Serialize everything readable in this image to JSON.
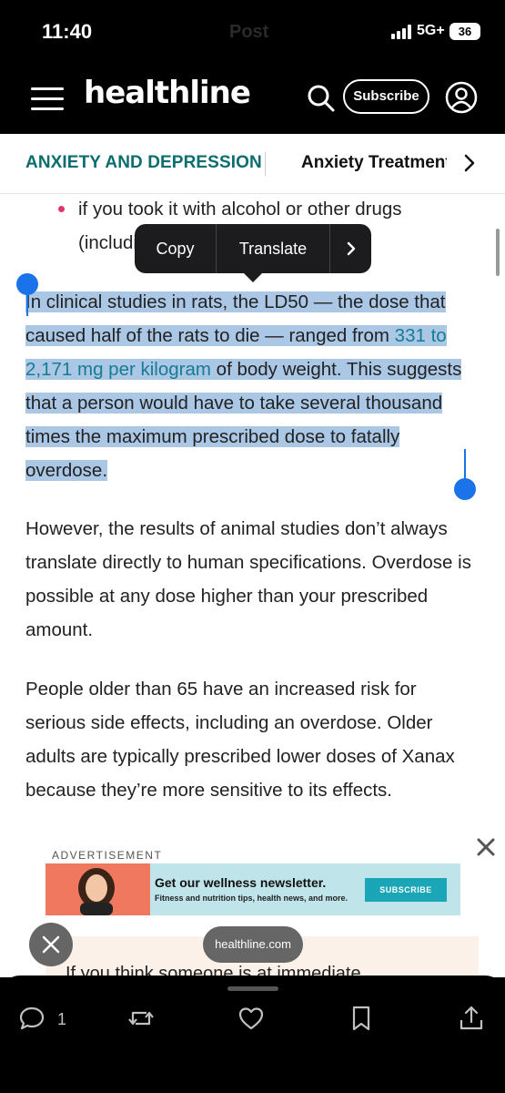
{
  "status_bar": {
    "time": "11:40",
    "center_text": "Post",
    "network": "5G+",
    "battery": "36"
  },
  "header": {
    "logo": "healthline",
    "subscribe_label": "Subscribe",
    "icons": [
      "menu-icon",
      "search-icon",
      "account-icon"
    ]
  },
  "category_nav": {
    "active": "ANXIETY AND DEPRESSION",
    "next": "Anxiety Treatment"
  },
  "article": {
    "bullet": "if you took it with alcohol or other drugs (including",
    "selected_paragraph": {
      "part1": "In clinical studies in rats, the LD50 — the dose that caused half of the rats to die — ranged from ",
      "link": "331 to 2,171 mg per kilogram",
      "part2": " of body weight. This suggests that a person would have to take several thousand times the maximum prescribed dose to fatally overdose."
    },
    "paragraph2": "However, the results of animal studies don’t always translate directly to human specifications. Overdose is possible at any dose higher than your prescribed amount.",
    "paragraph3": "People older than 65 have an increased risk for serious side effects, including an overdose. Older adults are typically prescribed lower doses of Xanax because they’re more sensitive to its effects.",
    "callout_text": "If you think someone is at immediate"
  },
  "context_menu": {
    "copy": "Copy",
    "translate": "Translate"
  },
  "ad": {
    "label": "ADVERTISEMENT",
    "title": "Get our wellness newsletter.",
    "subtitle": "Fitness and nutrition tips, health news, and more.",
    "button": "SUBSCRIBE"
  },
  "browser": {
    "url": "healthline.com"
  },
  "bottom_bar": {
    "reply_count": "1",
    "icons": [
      "reply-icon",
      "repost-icon",
      "like-icon",
      "bookmark-icon",
      "share-icon"
    ]
  },
  "colors": {
    "accent_teal": "#0b6e6e",
    "link": "#167b93",
    "selection": "#abc7e6",
    "selection_handle": "#1a73e8",
    "bullet": "#e2336f"
  }
}
